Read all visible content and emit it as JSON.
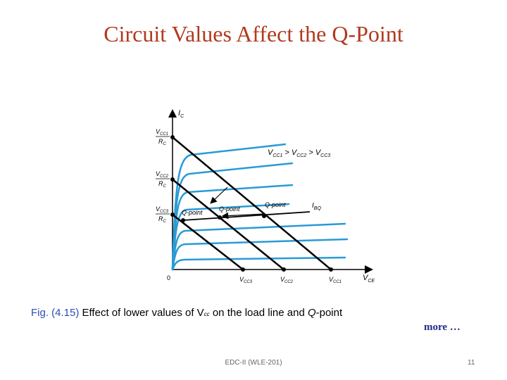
{
  "slide": {
    "title": "Circuit Values Affect the Q-Point",
    "more_link": "more …",
    "footer": "EDC-II (WLE-201)",
    "page_number": "11"
  },
  "figure": {
    "y_axis_label": "I",
    "y_axis_sub": "C",
    "x_axis_label": "V",
    "x_axis_sub": "CE",
    "origin": "0",
    "y_ticks": [
      {
        "num": "V",
        "num_sub": "CC1",
        "den": "R",
        "den_sub": "C"
      },
      {
        "num": "V",
        "num_sub": "CC2",
        "den": "R",
        "den_sub": "C"
      },
      {
        "num": "V",
        "num_sub": "CC3",
        "den": "R",
        "den_sub": "C"
      }
    ],
    "x_ticks": [
      {
        "main": "V",
        "sub": "CC3"
      },
      {
        "main": "V",
        "sub": "CC2"
      },
      {
        "main": "V",
        "sub": "CC1"
      }
    ],
    "inequality": {
      "parts": [
        {
          "main": "V",
          "sub": "CC1"
        },
        {
          "op": " > "
        },
        {
          "main": "V",
          "sub": "CC2"
        },
        {
          "op": " > "
        },
        {
          "main": "V",
          "sub": "CC3"
        }
      ]
    },
    "ib_label": {
      "main": "I",
      "sub": "BQ"
    },
    "q_labels": [
      "Q-point",
      "Q-point",
      "Q-point"
    ],
    "colors": {
      "curves": "#2a9ad6",
      "load_lines": "#000000",
      "title": "#b03a1e"
    }
  },
  "caption": {
    "fig_number": "Fig. (4.15)",
    "text_before": " Effect of lower values of V",
    "vcc_sub": "cc",
    "text_middle": " on the load line and ",
    "q_letter": "Q",
    "text_after": "-point"
  }
}
